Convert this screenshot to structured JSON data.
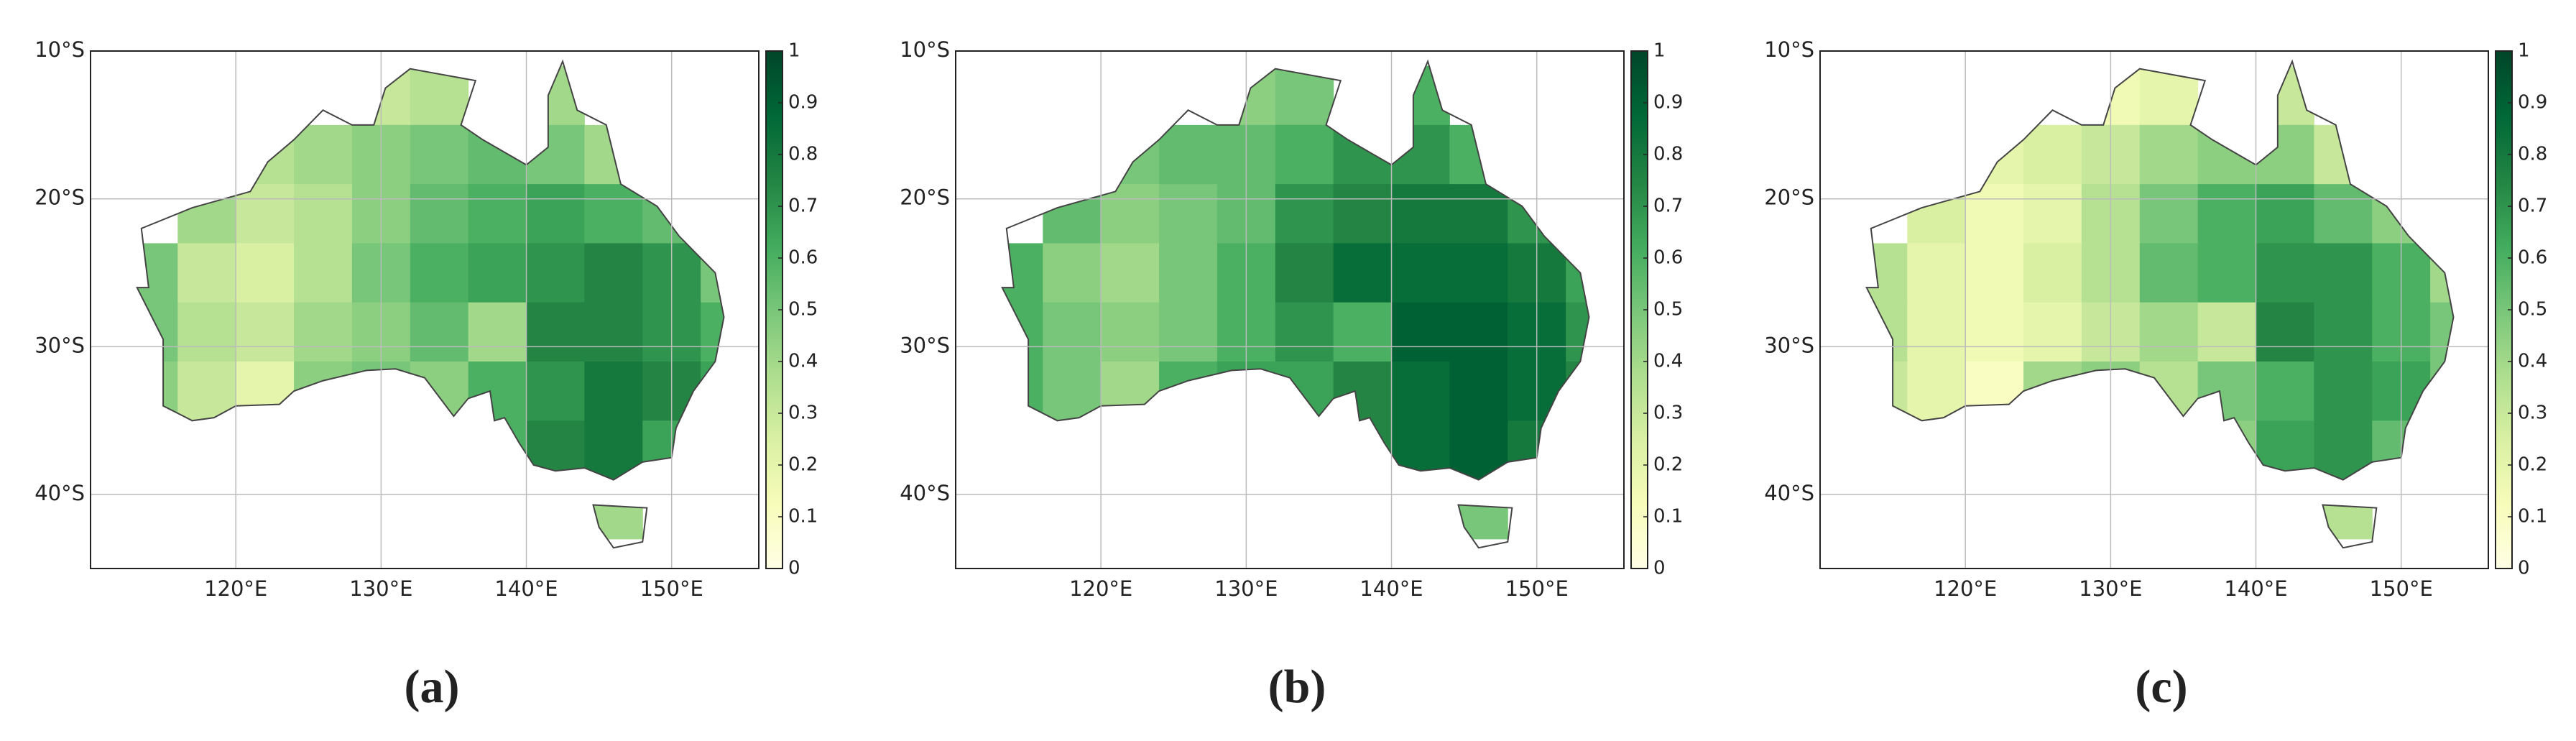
{
  "chart_data": [
    {
      "type": "map-grid",
      "panel_label": "(a)",
      "xlim": [
        110,
        156
      ],
      "ylim": [
        -45,
        -10
      ],
      "xticks": [
        {
          "value": 120,
          "label": "120°E"
        },
        {
          "value": 130,
          "label": "130°E"
        },
        {
          "value": 140,
          "label": "140°E"
        },
        {
          "value": 150,
          "label": "150°E"
        }
      ],
      "yticks": [
        {
          "value": -10,
          "label": "10°S"
        },
        {
          "value": -20,
          "label": "20°S"
        },
        {
          "value": -30,
          "label": "30°S"
        },
        {
          "value": -40,
          "label": "40°S"
        }
      ],
      "grid": true,
      "x": [
        114,
        118,
        122,
        126,
        130,
        134,
        138,
        142,
        146,
        150,
        154
      ],
      "y": [
        -13,
        -17,
        -21,
        -25,
        -29,
        -33,
        -37,
        -41
      ],
      "values": [
        [
          null,
          null,
          null,
          null,
          0.3,
          0.35,
          null,
          0.4,
          null,
          null,
          null
        ],
        [
          null,
          null,
          0.35,
          0.4,
          0.45,
          0.5,
          0.55,
          0.5,
          0.4,
          null,
          null
        ],
        [
          null,
          0.4,
          0.3,
          0.35,
          0.45,
          0.55,
          0.6,
          0.65,
          0.6,
          0.55,
          null
        ],
        [
          0.5,
          0.3,
          0.25,
          0.35,
          0.5,
          0.6,
          0.65,
          0.7,
          0.75,
          0.7,
          0.5
        ],
        [
          0.5,
          0.35,
          0.3,
          0.4,
          0.45,
          0.55,
          0.4,
          0.75,
          0.75,
          0.7,
          0.6
        ],
        [
          0.45,
          0.3,
          0.2,
          0.45,
          0.5,
          0.45,
          0.6,
          0.7,
          0.8,
          0.75,
          0.65
        ],
        [
          null,
          null,
          null,
          null,
          null,
          null,
          0.6,
          0.75,
          0.8,
          0.65,
          null
        ],
        [
          null,
          null,
          null,
          null,
          null,
          null,
          null,
          null,
          0.4,
          null,
          null
        ]
      ],
      "colormap": [
        "#ffffe5",
        "#f7fcb9",
        "#d9f0a3",
        "#addd8e",
        "#78c679",
        "#41ab5d",
        "#238443",
        "#006837",
        "#004529"
      ],
      "clim": [
        0,
        1
      ],
      "cticks": [
        0,
        0.1,
        0.2,
        0.3,
        0.4,
        0.5,
        0.6,
        0.7,
        0.8,
        0.9,
        1
      ]
    },
    {
      "type": "map-grid",
      "panel_label": "(b)",
      "xlim": [
        110,
        156
      ],
      "ylim": [
        -45,
        -10
      ],
      "xticks": [
        {
          "value": 120,
          "label": "120°E"
        },
        {
          "value": 130,
          "label": "130°E"
        },
        {
          "value": 140,
          "label": "140°E"
        },
        {
          "value": 150,
          "label": "150°E"
        }
      ],
      "yticks": [
        {
          "value": -10,
          "label": "10°S"
        },
        {
          "value": -20,
          "label": "20°S"
        },
        {
          "value": -30,
          "label": "30°S"
        },
        {
          "value": -40,
          "label": "40°S"
        }
      ],
      "grid": true,
      "x": [
        114,
        118,
        122,
        126,
        130,
        134,
        138,
        142,
        146,
        150,
        154
      ],
      "y": [
        -13,
        -17,
        -21,
        -25,
        -29,
        -33,
        -37,
        -41
      ],
      "values": [
        [
          null,
          null,
          null,
          null,
          0.45,
          0.5,
          null,
          0.6,
          null,
          null,
          null
        ],
        [
          null,
          null,
          0.5,
          0.55,
          0.55,
          0.6,
          0.7,
          0.7,
          0.6,
          null,
          null
        ],
        [
          null,
          0.55,
          0.45,
          0.5,
          0.55,
          0.7,
          0.75,
          0.8,
          0.8,
          0.7,
          null
        ],
        [
          0.6,
          0.45,
          0.4,
          0.5,
          0.6,
          0.75,
          0.85,
          0.85,
          0.85,
          0.8,
          0.65
        ],
        [
          0.6,
          0.5,
          0.45,
          0.5,
          0.6,
          0.7,
          0.6,
          0.9,
          0.9,
          0.85,
          0.7
        ],
        [
          0.6,
          0.5,
          0.4,
          0.6,
          0.65,
          0.65,
          0.75,
          0.85,
          0.9,
          0.85,
          0.75
        ],
        [
          null,
          null,
          null,
          null,
          null,
          null,
          0.75,
          0.85,
          0.9,
          0.8,
          null
        ],
        [
          null,
          null,
          null,
          null,
          null,
          null,
          null,
          null,
          0.5,
          null,
          null
        ]
      ],
      "colormap": [
        "#ffffe5",
        "#f7fcb9",
        "#d9f0a3",
        "#addd8e",
        "#78c679",
        "#41ab5d",
        "#238443",
        "#006837",
        "#004529"
      ],
      "clim": [
        0,
        1
      ],
      "cticks": [
        0,
        0.1,
        0.2,
        0.3,
        0.4,
        0.5,
        0.6,
        0.7,
        0.8,
        0.9,
        1
      ]
    },
    {
      "type": "map-grid",
      "panel_label": "(c)",
      "xlim": [
        110,
        156
      ],
      "ylim": [
        -45,
        -10
      ],
      "xticks": [
        {
          "value": 120,
          "label": "120°E"
        },
        {
          "value": 130,
          "label": "130°E"
        },
        {
          "value": 140,
          "label": "140°E"
        },
        {
          "value": 150,
          "label": "150°E"
        }
      ],
      "yticks": [
        {
          "value": -10,
          "label": "10°S"
        },
        {
          "value": -20,
          "label": "20°S"
        },
        {
          "value": -30,
          "label": "30°S"
        },
        {
          "value": -40,
          "label": "40°S"
        }
      ],
      "grid": true,
      "x": [
        114,
        118,
        122,
        126,
        130,
        134,
        138,
        142,
        146,
        150,
        154
      ],
      "y": [
        -13,
        -17,
        -21,
        -25,
        -29,
        -33,
        -37,
        -41
      ],
      "values": [
        [
          null,
          null,
          null,
          null,
          0.15,
          0.2,
          null,
          0.3,
          null,
          null,
          null
        ],
        [
          null,
          null,
          0.2,
          0.25,
          0.3,
          0.4,
          0.45,
          0.45,
          0.3,
          null,
          null
        ],
        [
          null,
          0.25,
          0.15,
          0.2,
          0.35,
          0.5,
          0.6,
          0.65,
          0.55,
          0.45,
          null
        ],
        [
          0.35,
          0.2,
          0.15,
          0.25,
          0.35,
          0.55,
          0.6,
          0.7,
          0.7,
          0.6,
          0.4
        ],
        [
          0.35,
          0.2,
          0.15,
          0.2,
          0.3,
          0.4,
          0.3,
          0.75,
          0.7,
          0.6,
          0.5
        ],
        [
          0.3,
          0.2,
          0.1,
          0.4,
          0.45,
          0.35,
          0.5,
          0.6,
          0.7,
          0.65,
          0.5
        ],
        [
          null,
          null,
          null,
          null,
          null,
          null,
          0.45,
          0.65,
          0.7,
          0.55,
          null
        ],
        [
          null,
          null,
          null,
          null,
          null,
          null,
          null,
          null,
          0.35,
          null,
          null
        ]
      ],
      "colormap": [
        "#ffffe5",
        "#f7fcb9",
        "#d9f0a3",
        "#addd8e",
        "#78c679",
        "#41ab5d",
        "#238443",
        "#006837",
        "#004529"
      ],
      "clim": [
        0,
        1
      ],
      "cticks": [
        0,
        0.1,
        0.2,
        0.3,
        0.4,
        0.5,
        0.6,
        0.7,
        0.8,
        0.9,
        1
      ]
    }
  ]
}
